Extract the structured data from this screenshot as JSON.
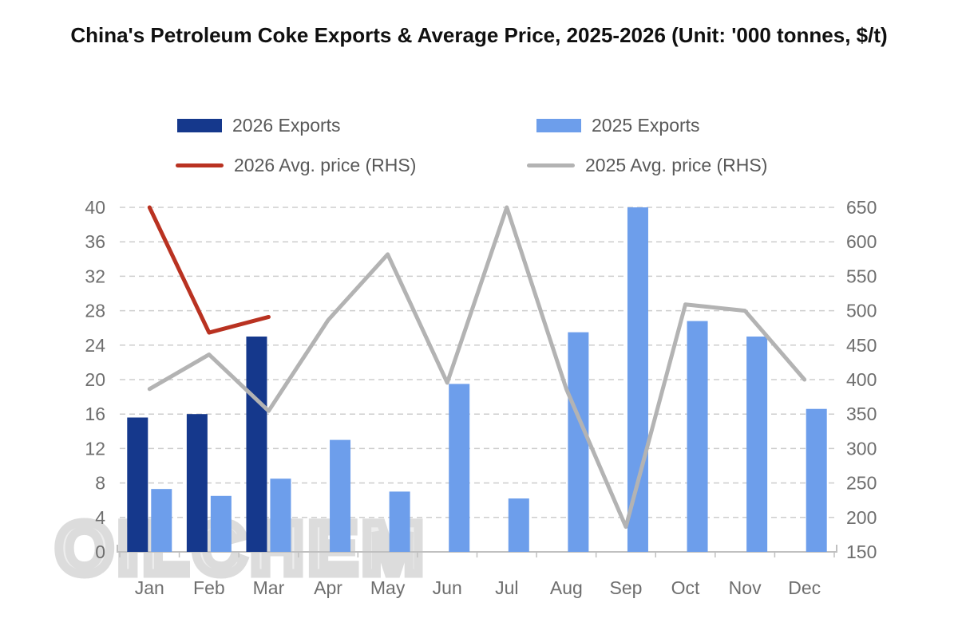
{
  "chart_data": {
    "type": "combo-bar-line",
    "title": "China's Petroleum Coke Exports & Average Price, 2025-2026 (Unit: '000 tonnes, $/t)",
    "categories": [
      "Jan",
      "Feb",
      "Mar",
      "Apr",
      "May",
      "Jun",
      "Jul",
      "Aug",
      "Sep",
      "Oct",
      "Nov",
      "Dec"
    ],
    "bar_series": [
      {
        "name": "2026 Exports",
        "axis": "left",
        "color": "#15388c",
        "values": [
          15.6,
          16,
          25,
          null,
          null,
          null,
          null,
          null,
          null,
          null,
          null,
          null
        ]
      },
      {
        "name": "2025 Exports",
        "axis": "left",
        "color": "#6d9eeb",
        "values": [
          7.3,
          6.5,
          8.5,
          13,
          7,
          19.5,
          6.2,
          25.5,
          40,
          26.8,
          25,
          16.6
        ]
      }
    ],
    "line_series": [
      {
        "name": "2026 Avg. price (RHS)",
        "axis": "right",
        "color": "#b93221",
        "values": [
          700,
          500,
          525,
          null,
          null,
          null,
          null,
          null,
          null,
          null,
          null,
          null
        ]
      },
      {
        "name": "2025 Avg. price (RHS)",
        "axis": "right",
        "color": "#b3b3b3",
        "values": [
          410,
          465,
          375,
          520,
          625,
          420,
          700,
          410,
          190,
          545,
          535,
          425
        ]
      }
    ],
    "left_axis": {
      "min": 0,
      "max": 40,
      "step": 4,
      "unit": "'000 tonnes"
    },
    "right_axis": {
      "min": 150,
      "max": 700,
      "step": 50,
      "unit": "$/t"
    },
    "grid": "horizontal-dashed",
    "legend_position": "top",
    "watermark": "OILCHEM",
    "style": {
      "axis_text_color": "#6e6e6e",
      "legend_text_color": "#595959",
      "grid_color": "#cdcdcd",
      "baseline_color": "#c0c0c0"
    }
  }
}
